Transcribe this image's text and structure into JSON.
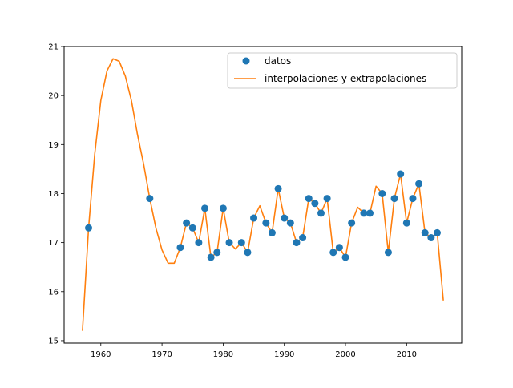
{
  "chart_data": {
    "type": "line",
    "title": "",
    "xlabel": "",
    "ylabel": "",
    "xlim": [
      1954,
      2019
    ],
    "ylim": [
      14.95,
      21.0
    ],
    "xticks": [
      1960,
      1970,
      1980,
      1990,
      2000,
      2010
    ],
    "yticks": [
      15,
      16,
      17,
      18,
      19,
      20,
      21
    ],
    "grid": false,
    "legend_position": "top-right",
    "legend": [
      "datos",
      "interpolaciones y extrapolaciones"
    ],
    "series": [
      {
        "name": "datos",
        "style": "points",
        "color": "#1f77b4",
        "points": [
          [
            1958,
            17.3
          ],
          [
            1968,
            17.9
          ],
          [
            1973,
            16.9
          ],
          [
            1974,
            17.4
          ],
          [
            1975,
            17.3
          ],
          [
            1976,
            17.0
          ],
          [
            1977,
            17.7
          ],
          [
            1978,
            16.7
          ],
          [
            1979,
            16.8
          ],
          [
            1980,
            17.7
          ],
          [
            1981,
            17.0
          ],
          [
            1983,
            17.0
          ],
          [
            1984,
            16.8
          ],
          [
            1985,
            17.5
          ],
          [
            1987,
            17.4
          ],
          [
            1988,
            17.2
          ],
          [
            1989,
            18.1
          ],
          [
            1990,
            17.5
          ],
          [
            1991,
            17.4
          ],
          [
            1992,
            17.0
          ],
          [
            1993,
            17.1
          ],
          [
            1994,
            17.9
          ],
          [
            1995,
            17.8
          ],
          [
            1996,
            17.6
          ],
          [
            1997,
            17.9
          ],
          [
            1998,
            16.8
          ],
          [
            1999,
            16.9
          ],
          [
            2000,
            16.7
          ],
          [
            2001,
            17.4
          ],
          [
            2003,
            17.6
          ],
          [
            2004,
            17.6
          ],
          [
            2006,
            18.0
          ],
          [
            2007,
            16.8
          ],
          [
            2008,
            17.9
          ],
          [
            2009,
            18.4
          ],
          [
            2010,
            17.4
          ],
          [
            2011,
            17.9
          ],
          [
            2012,
            18.2
          ],
          [
            2013,
            17.2
          ],
          [
            2014,
            17.1
          ],
          [
            2015,
            17.2
          ]
        ]
      },
      {
        "name": "interpolaciones y extrapolaciones",
        "style": "line",
        "color": "#ff7f0e",
        "points": [
          [
            1957,
            15.2
          ],
          [
            1958,
            17.3
          ],
          [
            1959,
            18.8
          ],
          [
            1960,
            19.9
          ],
          [
            1961,
            20.5
          ],
          [
            1962,
            20.75
          ],
          [
            1963,
            20.7
          ],
          [
            1964,
            20.4
          ],
          [
            1965,
            19.9
          ],
          [
            1966,
            19.2
          ],
          [
            1967,
            18.6
          ],
          [
            1968,
            17.9
          ],
          [
            1969,
            17.3
          ],
          [
            1970,
            16.85
          ],
          [
            1971,
            16.58
          ],
          [
            1972,
            16.58
          ],
          [
            1973,
            16.9
          ],
          [
            1974,
            17.4
          ],
          [
            1975,
            17.3
          ],
          [
            1976,
            17.0
          ],
          [
            1977,
            17.7
          ],
          [
            1978,
            16.7
          ],
          [
            1979,
            16.8
          ],
          [
            1980,
            17.7
          ],
          [
            1981,
            17.0
          ],
          [
            1982,
            16.87
          ],
          [
            1983,
            17.0
          ],
          [
            1984,
            16.8
          ],
          [
            1985,
            17.5
          ],
          [
            1986,
            17.75
          ],
          [
            1987,
            17.4
          ],
          [
            1988,
            17.2
          ],
          [
            1989,
            18.1
          ],
          [
            1990,
            17.5
          ],
          [
            1991,
            17.4
          ],
          [
            1992,
            17.0
          ],
          [
            1993,
            17.1
          ],
          [
            1994,
            17.9
          ],
          [
            1995,
            17.8
          ],
          [
            1996,
            17.6
          ],
          [
            1997,
            17.9
          ],
          [
            1998,
            16.8
          ],
          [
            1999,
            16.9
          ],
          [
            2000,
            16.7
          ],
          [
            2001,
            17.4
          ],
          [
            2002,
            17.72
          ],
          [
            2003,
            17.6
          ],
          [
            2004,
            17.6
          ],
          [
            2005,
            18.15
          ],
          [
            2006,
            18.0
          ],
          [
            2007,
            16.8
          ],
          [
            2008,
            17.9
          ],
          [
            2009,
            18.4
          ],
          [
            2010,
            17.4
          ],
          [
            2011,
            17.9
          ],
          [
            2012,
            18.2
          ],
          [
            2013,
            17.2
          ],
          [
            2014,
            17.1
          ],
          [
            2015,
            17.2
          ],
          [
            2016,
            15.82
          ]
        ]
      }
    ]
  }
}
